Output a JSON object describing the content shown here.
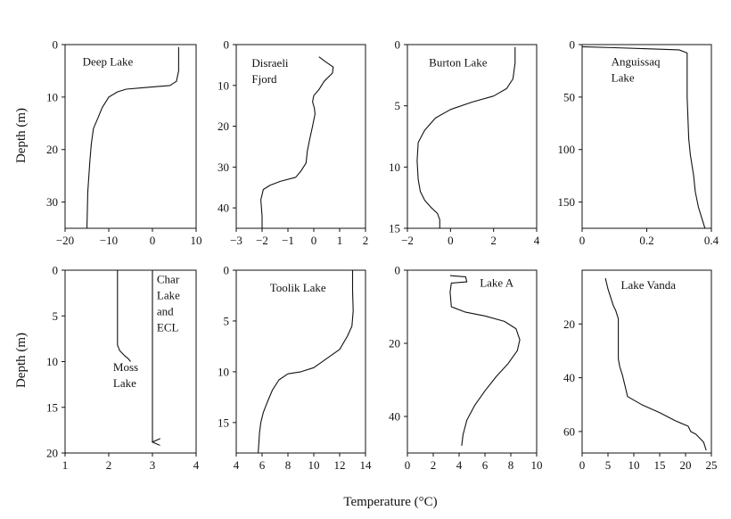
{
  "figure": {
    "ylabel": "Depth (m)",
    "xlabel": "Temperature (°C)"
  },
  "chart_data": [
    {
      "type": "line",
      "xlim": [
        -20,
        10
      ],
      "ylim": [
        0,
        35
      ],
      "y_inverted": true,
      "xticks": [
        -20,
        -10,
        0,
        10
      ],
      "yticks": [
        0,
        10,
        20,
        30
      ],
      "annotations": [
        {
          "lines": [
            "Deep Lake"
          ],
          "at": [
            -16,
            4
          ]
        }
      ],
      "series": [
        {
          "x": [
            6,
            6,
            6,
            5.5,
            4,
            1,
            -2,
            -6,
            -8,
            -10,
            -11.5,
            -12.5,
            -13.5,
            -14,
            -14.3,
            -14.8,
            -15
          ],
          "y": [
            0.5,
            2,
            5,
            7,
            7.8,
            8,
            8.2,
            8.5,
            9,
            10,
            12,
            14,
            16,
            19,
            22,
            28,
            35
          ]
        }
      ]
    },
    {
      "type": "line",
      "xlim": [
        -3,
        2
      ],
      "ylim": [
        0,
        45
      ],
      "y_inverted": true,
      "xticks": [
        -3,
        -2,
        -1,
        0,
        1,
        2
      ],
      "yticks": [
        0,
        10,
        20,
        30,
        40
      ],
      "annotations": [
        {
          "lines": [
            "Disraeli",
            "Fjord"
          ],
          "at": [
            -2.4,
            5.5
          ]
        }
      ],
      "series": [
        {
          "x": [
            0.2,
            0.45,
            0.75,
            0.72,
            0.4,
            0.2,
            0,
            -0.05,
            0.02,
            0.05,
            -0.05,
            -0.15,
            -0.25,
            -0.3,
            -0.5,
            -0.7,
            -1.3,
            -1.7,
            -1.95,
            -2.05,
            -2,
            -2
          ],
          "y": [
            3,
            4.2,
            5.5,
            7,
            9,
            11,
            12.5,
            14,
            15.5,
            17,
            20,
            23,
            26,
            29,
            31,
            32.5,
            33.5,
            34.5,
            35.5,
            38,
            42,
            45
          ]
        }
      ]
    },
    {
      "type": "line",
      "xlim": [
        -2,
        4
      ],
      "ylim": [
        0,
        15
      ],
      "y_inverted": true,
      "xticks": [
        -2,
        0,
        2,
        4
      ],
      "yticks": [
        0,
        5,
        10,
        15
      ],
      "annotations": [
        {
          "lines": [
            "Burton Lake"
          ],
          "at": [
            -1,
            1.8
          ]
        }
      ],
      "series": [
        {
          "x": [
            3,
            3,
            2.9,
            2.6,
            2,
            1,
            0,
            -0.7,
            -1.2,
            -1.5,
            -1.55,
            -1.5,
            -1.4,
            -1.2,
            -0.9,
            -0.6,
            -0.5,
            -0.5
          ],
          "y": [
            0.2,
            1.5,
            2.8,
            3.6,
            4.2,
            4.7,
            5.3,
            6,
            7,
            8,
            9.5,
            11,
            12,
            12.7,
            13.3,
            13.8,
            14.3,
            15
          ]
        }
      ]
    },
    {
      "type": "line",
      "xlim": [
        0,
        0.4
      ],
      "ylim": [
        0,
        175
      ],
      "y_inverted": true,
      "xticks": [
        0,
        0.2,
        0.4
      ],
      "yticks": [
        0,
        50,
        100,
        150
      ],
      "annotations": [
        {
          "lines": [
            "Anguissaq",
            "Lake"
          ],
          "at": [
            0.09,
            20
          ]
        }
      ],
      "series": [
        {
          "x": [
            0,
            0.1,
            0.2,
            0.3,
            0.325,
            0.325,
            0.33,
            0.335,
            0.345,
            0.35,
            0.36,
            0.37,
            0.38
          ],
          "y": [
            2,
            3,
            4,
            5,
            8,
            50,
            90,
            105,
            125,
            140,
            155,
            165,
            175
          ]
        }
      ]
    },
    {
      "type": "line",
      "xlim": [
        1,
        4
      ],
      "ylim": [
        0,
        20
      ],
      "y_inverted": true,
      "xticks": [
        1,
        2,
        3,
        4
      ],
      "yticks": [
        0,
        5,
        10,
        15,
        20
      ],
      "annotations": [
        {
          "lines": [
            "Moss",
            "Lake"
          ],
          "at": [
            2.1,
            11
          ]
        },
        {
          "lines": [
            "Char",
            "Lake",
            "and",
            "ECL"
          ],
          "at": [
            3.1,
            1.4
          ]
        }
      ],
      "series": [
        {
          "x": [
            2.2,
            2.2,
            2.2,
            2.2,
            2.25,
            2.35,
            2.45,
            2.5
          ],
          "y": [
            0,
            4,
            7.5,
            8.2,
            8.8,
            9.3,
            9.7,
            10
          ]
        },
        {
          "x": [
            3,
            3
          ],
          "y": [
            0,
            18.8
          ],
          "arrow": true
        }
      ]
    },
    {
      "type": "line",
      "xlim": [
        4,
        14
      ],
      "ylim": [
        0,
        18
      ],
      "y_inverted": true,
      "xticks": [
        4,
        6,
        8,
        10,
        12,
        14
      ],
      "yticks": [
        0,
        5,
        10,
        15
      ],
      "annotations": [
        {
          "lines": [
            "Toolik Lake"
          ],
          "at": [
            6.6,
            2.1
          ]
        }
      ],
      "series": [
        {
          "x": [
            13,
            13,
            13.05,
            12.95,
            12.6,
            12,
            11,
            10,
            9,
            8,
            7.3,
            6.8,
            6.4,
            6.1,
            5.9,
            5.8,
            5.75,
            5.7
          ],
          "y": [
            0,
            2,
            4,
            5.5,
            6.5,
            7.8,
            8.7,
            9.6,
            10,
            10.2,
            10.8,
            11.8,
            13,
            14,
            15,
            16,
            17,
            18
          ]
        }
      ]
    },
    {
      "type": "line",
      "xlim": [
        0,
        10
      ],
      "ylim": [
        0,
        50
      ],
      "y_inverted": true,
      "xticks": [
        0,
        2,
        4,
        6,
        8,
        10
      ],
      "yticks": [
        0,
        20,
        40
      ],
      "annotations": [
        {
          "lines": [
            "Lake A"
          ],
          "at": [
            5.6,
            4.5
          ]
        }
      ],
      "series": [
        {
          "x": [
            3.3,
            4.5,
            4.6,
            3.4,
            3.3,
            3.4,
            4.5,
            6,
            7.5,
            8.4,
            8.7,
            8.5,
            7.8,
            6.9,
            6,
            5.2,
            4.6,
            4.3,
            4.2
          ],
          "y": [
            1.5,
            1.8,
            3.2,
            3.5,
            6,
            10,
            11.5,
            12.5,
            14,
            16,
            19,
            22,
            25.5,
            29,
            33,
            37,
            41,
            45,
            48
          ]
        }
      ]
    },
    {
      "type": "line",
      "xlim": [
        0,
        25
      ],
      "ylim": [
        0,
        68
      ],
      "y_inverted": true,
      "xticks": [
        0,
        5,
        10,
        15,
        20,
        25
      ],
      "yticks": [
        20,
        40,
        60
      ],
      "annotations": [
        {
          "lines": [
            "Lake Vanda"
          ],
          "at": [
            7.5,
            7
          ]
        }
      ],
      "series": [
        {
          "x": [
            4.5,
            5,
            5.5,
            6,
            6.5,
            7,
            7,
            7,
            7.3,
            7.8,
            8.3,
            8.8,
            11.5,
            15,
            18,
            20.5,
            21,
            22,
            22.5,
            23.5,
            24
          ],
          "y": [
            3,
            7,
            10,
            13,
            15,
            18,
            25,
            33,
            36,
            39,
            43,
            47,
            50,
            53,
            56,
            58,
            60,
            61,
            62,
            64,
            67
          ]
        }
      ]
    }
  ]
}
